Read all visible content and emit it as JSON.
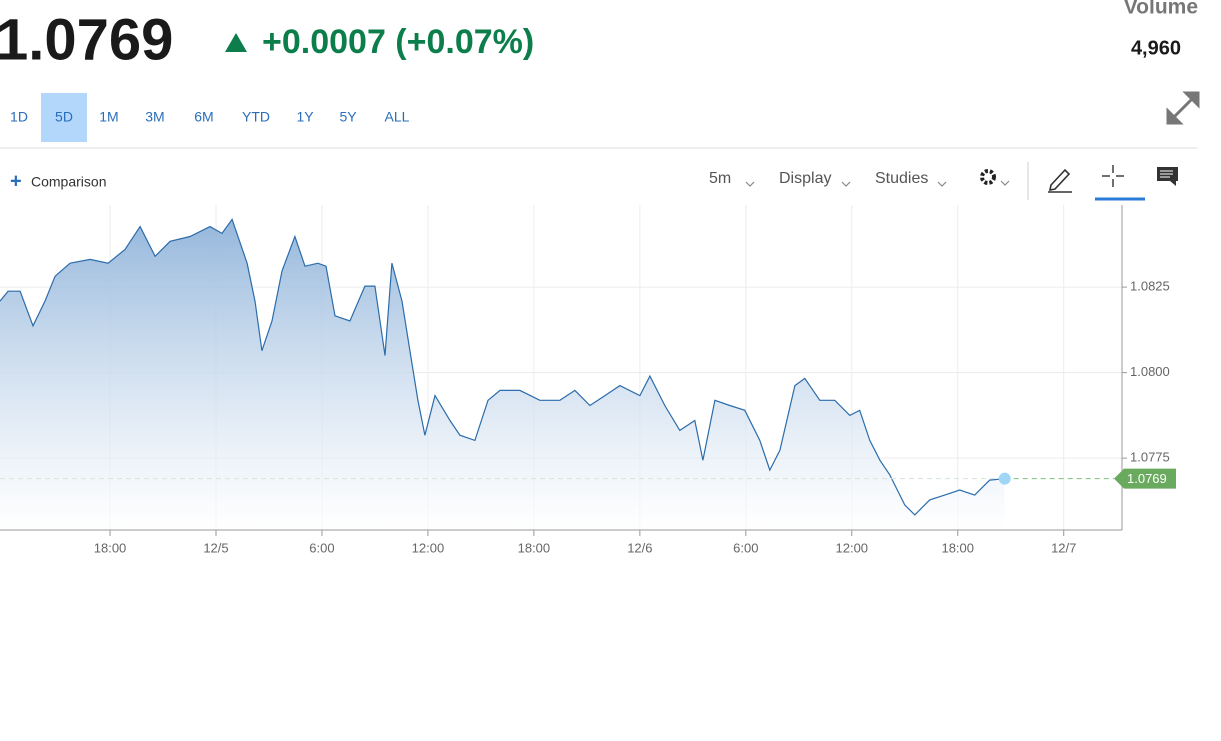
{
  "header": {
    "price": "1.0769",
    "change": "+0.0007 (+0.07%)",
    "volume_label": "Volume",
    "volume": "4,960"
  },
  "ranges": {
    "items": [
      "1D",
      "5D",
      "1M",
      "3M",
      "6M",
      "YTD",
      "1Y",
      "5Y",
      "ALL"
    ],
    "selected": "5D"
  },
  "toolbar": {
    "comparison": "Comparison",
    "interval": "5m",
    "display": "Display",
    "studies": "Studies"
  },
  "chart_data": {
    "type": "area",
    "color": "#2b6cab",
    "grid": true,
    "last_value": 1.0769,
    "xlim": [
      -12.23,
      51.3
    ],
    "ylim": [
      1.0754,
      1.0849
    ],
    "xticks": [
      {
        "value": -6,
        "label": "18:00"
      },
      {
        "value": 0,
        "label": "12/5"
      },
      {
        "value": 6,
        "label": "6:00"
      },
      {
        "value": 12,
        "label": "12:00"
      },
      {
        "value": 18,
        "label": "18:00"
      },
      {
        "value": 24,
        "label": "12/6"
      },
      {
        "value": 30,
        "label": "6:00"
      },
      {
        "value": 36,
        "label": "12:00"
      },
      {
        "value": 42,
        "label": "18:00"
      },
      {
        "value": 48,
        "label": "12/7"
      }
    ],
    "yticks": [
      1.0775,
      {
        "value": 1.08,
        "label": "1.0800"
      },
      1.0825
    ],
    "x": [
      -12.23,
      -11.77,
      -11.09,
      -10.36,
      -9.68,
      -9.11,
      -8.26,
      -7.13,
      -6.11,
      -5.15,
      -4.3,
      -3.45,
      -2.6,
      -1.47,
      -0.34,
      0.34,
      0.91,
      1.76,
      2.21,
      2.6,
      3.17,
      3.74,
      4.47,
      5.04,
      5.77,
      6.23,
      6.74,
      7.58,
      8.43,
      9.0,
      9.57,
      9.96,
      10.53,
      10.98,
      11.43,
      11.83,
      12.4,
      13.25,
      13.81,
      14.66,
      15.4,
      16.08,
      17.21,
      18.34,
      19.47,
      20.32,
      21.17,
      22.02,
      22.87,
      24.0,
      24.57,
      25.41,
      26.26,
      27.11,
      27.57,
      28.25,
      29.09,
      29.94,
      30.79,
      31.36,
      31.93,
      32.78,
      33.34,
      34.19,
      35.04,
      35.89,
      36.45,
      37.02,
      37.59,
      38.15,
      39.0,
      39.57,
      40.41,
      41.26,
      42.11,
      42.96,
      43.81,
      44.66
    ],
    "values": [
      1.08209,
      1.08238,
      1.08238,
      1.08137,
      1.08209,
      1.08282,
      1.0832,
      1.08331,
      1.0832,
      1.0836,
      1.08427,
      1.0834,
      1.08384,
      1.08398,
      1.08427,
      1.08407,
      1.08448,
      1.0832,
      1.08209,
      1.08064,
      1.08151,
      1.08297,
      1.08398,
      1.08311,
      1.0832,
      1.08311,
      1.08166,
      1.08151,
      1.08253,
      1.08253,
      1.0805,
      1.0832,
      1.08209,
      1.08064,
      1.07919,
      1.07817,
      1.07933,
      1.0786,
      1.07817,
      1.07802,
      1.07919,
      1.07948,
      1.07948,
      1.07919,
      1.07919,
      1.07948,
      1.07904,
      1.07933,
      1.07962,
      1.07933,
      1.0799,
      1.07904,
      1.07831,
      1.0786,
      1.07744,
      1.07919,
      1.07904,
      1.0789,
      1.07802,
      1.07715,
      1.07773,
      1.07962,
      1.07983,
      1.07919,
      1.07919,
      1.07875,
      1.0789,
      1.07802,
      1.07744,
      1.07701,
      1.07613,
      1.07584,
      1.07628,
      1.07642,
      1.07657,
      1.07642,
      1.07686,
      1.0769
    ]
  }
}
